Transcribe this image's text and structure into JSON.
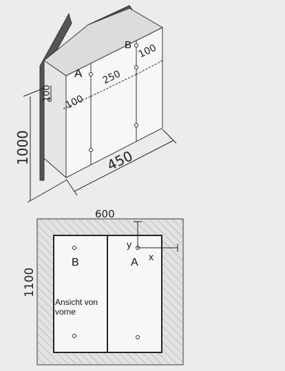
{
  "iso_view": {
    "point_labels": {
      "a": "A",
      "b": "B"
    },
    "dimensions": {
      "height": "1000",
      "width": "450",
      "top_offset": "100",
      "left_offset": "100",
      "center_span": "250",
      "right_offset": "100"
    }
  },
  "front_view": {
    "dimensions": {
      "width": "600",
      "height": "1100"
    },
    "point_labels": {
      "a": "A",
      "b": "B"
    },
    "axes": {
      "x": "x",
      "y": "y"
    },
    "caption_line1": "Ansicht von",
    "caption_line2": "vorne"
  },
  "colors": {
    "background": "#ececec",
    "hatch_panel": "#e2e2e2",
    "hatch_line": "#9a9a9a",
    "cabinet_face": "#f7f7f7",
    "cabinet_side": "#e6e6e6",
    "cabinet_top": "#dcdcdc",
    "wall": "#555555",
    "line": "#222222"
  }
}
